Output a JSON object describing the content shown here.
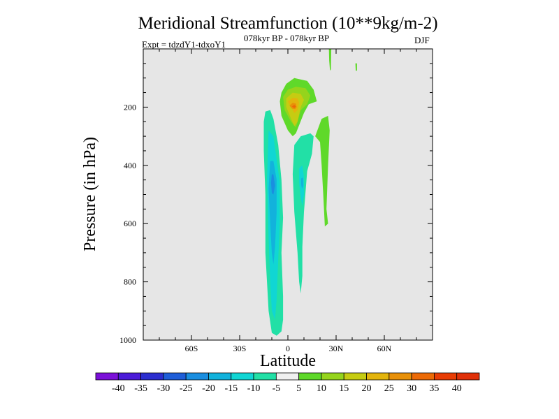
{
  "chart_data": {
    "type": "contour",
    "title": "Meridional Streamfunction (10**9kg/m-2)",
    "experiment_label": "Expt = tdzdY1-tdxoY1",
    "period_label": "078kyr BP - 078kyr BP",
    "season_label": "DJF",
    "xlabel": "Latitude",
    "ylabel": "Pressure (in hPa)",
    "xlim": [
      -90,
      90
    ],
    "ylim": [
      1000,
      0
    ],
    "x_ticks": [
      {
        "value": -60,
        "label": "60S"
      },
      {
        "value": -30,
        "label": "30S"
      },
      {
        "value": 0,
        "label": "0"
      },
      {
        "value": 30,
        "label": "30N"
      },
      {
        "value": 60,
        "label": "60N"
      }
    ],
    "y_ticks": [
      {
        "value": 200,
        "label": "200"
      },
      {
        "value": 400,
        "label": "400"
      },
      {
        "value": 600,
        "label": "600"
      },
      {
        "value": 800,
        "label": "800"
      },
      {
        "value": 1000,
        "label": "1000"
      }
    ],
    "background_color": "#e6e6e6",
    "colorbar": {
      "labels": [
        "-40",
        "-35",
        "-30",
        "-25",
        "-20",
        "-15",
        "-10",
        "-5",
        "5",
        "10",
        "15",
        "20",
        "25",
        "30",
        "35",
        "40"
      ],
      "colors": [
        "#7b10d8",
        "#4b1bd8",
        "#2c2ecf",
        "#1f5ed8",
        "#1a8ee0",
        "#12b2dc",
        "#10d6d4",
        "#22e0a6",
        "#f0f0f0",
        "#5fd92a",
        "#95d41c",
        "#c6cc12",
        "#e3b40c",
        "#e89008",
        "#ec6a06",
        "#e83c04"
      ]
    },
    "contours": [
      {
        "name": "-5 negative cell (south)",
        "level": -5,
        "color": "#22e0a6",
        "points": [
          [
            -14,
            215
          ],
          [
            -11,
            210
          ],
          [
            -9,
            240
          ],
          [
            -6,
            330
          ],
          [
            -4,
            450
          ],
          [
            -3,
            580
          ],
          [
            -4,
            700
          ],
          [
            -3,
            850
          ],
          [
            -3,
            930
          ],
          [
            -4,
            970
          ],
          [
            -7,
            985
          ],
          [
            -10,
            975
          ],
          [
            -12,
            900
          ],
          [
            -13,
            800
          ],
          [
            -14,
            700
          ],
          [
            -14,
            500
          ],
          [
            -15,
            350
          ],
          [
            -15,
            250
          ]
        ]
      },
      {
        "name": "-10 negative cell (south)",
        "level": -10,
        "color": "#10d6d4",
        "points": [
          [
            -12,
            280
          ],
          [
            -9,
            300
          ],
          [
            -7,
            380
          ],
          [
            -5,
            460
          ],
          [
            -5,
            600
          ],
          [
            -6,
            720
          ],
          [
            -7,
            860
          ],
          [
            -8,
            930
          ],
          [
            -10,
            900
          ],
          [
            -11,
            800
          ],
          [
            -12,
            650
          ],
          [
            -13,
            450
          ]
        ]
      },
      {
        "name": "-15 negative core (south)",
        "level": -15,
        "color": "#12b2dc",
        "points": [
          [
            -11,
            385
          ],
          [
            -9,
            385
          ],
          [
            -7,
            450
          ],
          [
            -7,
            560
          ],
          [
            -8,
            680
          ],
          [
            -9,
            740
          ],
          [
            -10,
            700
          ],
          [
            -11,
            600
          ],
          [
            -12,
            480
          ]
        ]
      },
      {
        "name": "-20 negative core (south)",
        "level": -20,
        "color": "#1a8ee0",
        "points": [
          [
            -10,
            430
          ],
          [
            -9,
            432
          ],
          [
            -8,
            470
          ],
          [
            -9,
            500
          ],
          [
            -10,
            495
          ],
          [
            -10.5,
            460
          ]
        ]
      },
      {
        "name": "-5 negative cell (north)",
        "level": -5,
        "color": "#22e0a6",
        "points": [
          [
            4,
            330
          ],
          [
            8,
            300
          ],
          [
            14,
            290
          ],
          [
            16,
            300
          ],
          [
            15,
            360
          ],
          [
            12,
            420
          ],
          [
            10,
            560
          ],
          [
            9,
            680
          ],
          [
            9,
            780
          ],
          [
            8,
            840
          ],
          [
            7,
            800
          ],
          [
            6,
            700
          ],
          [
            4,
            560
          ],
          [
            3,
            430
          ]
        ]
      },
      {
        "name": "-10 negative core (north)",
        "level": -10,
        "color": "#10d6d4",
        "points": [
          [
            7,
            410
          ],
          [
            9,
            400
          ],
          [
            10,
            440
          ],
          [
            10,
            500
          ],
          [
            9,
            540
          ],
          [
            8,
            510
          ],
          [
            7,
            460
          ]
        ]
      },
      {
        "name": "-15 negative core (north)",
        "level": -15,
        "color": "#12b2dc",
        "points": [
          [
            8.2,
            445
          ],
          [
            9.4,
            442
          ],
          [
            9.6,
            470
          ],
          [
            8.8,
            480
          ],
          [
            8.2,
            465
          ]
        ]
      },
      {
        "name": "+5 positive cell (upper)",
        "level": 5,
        "color": "#5fd92a",
        "points": [
          [
            -4,
            150
          ],
          [
            -1,
            120
          ],
          [
            4,
            100
          ],
          [
            12,
            110
          ],
          [
            16,
            140
          ],
          [
            18,
            180
          ],
          [
            13,
            190
          ],
          [
            10,
            220
          ],
          [
            5,
            290
          ],
          [
            3,
            300
          ],
          [
            0,
            280
          ],
          [
            -4,
            230
          ],
          [
            -5,
            180
          ]
        ]
      },
      {
        "name": "+5 positive cell (northern column)",
        "level": 5,
        "color": "#5fd92a",
        "points": [
          [
            17,
            300
          ],
          [
            21,
            240
          ],
          [
            25,
            230
          ],
          [
            26,
            280
          ],
          [
            25,
            400
          ],
          [
            24,
            550
          ],
          [
            25,
            600
          ],
          [
            23,
            610
          ],
          [
            22,
            500
          ],
          [
            21,
            400
          ],
          [
            20,
            320
          ]
        ]
      },
      {
        "name": "+5 small cell near 25N top",
        "level": 5,
        "color": "#5fd92a",
        "points": [
          [
            25.5,
            0
          ],
          [
            27,
            0
          ],
          [
            26.8,
            70
          ],
          [
            26.2,
            75
          ],
          [
            25.7,
            40
          ]
        ]
      },
      {
        "name": "+5 tiny cell near 42N",
        "level": 5,
        "color": "#5fd92a",
        "points": [
          [
            42,
            50
          ],
          [
            43,
            50
          ],
          [
            43,
            75
          ],
          [
            42.2,
            75
          ]
        ]
      },
      {
        "name": "+10 positive cell",
        "level": 10,
        "color": "#95d41c",
        "points": [
          [
            -3,
            165
          ],
          [
            0,
            140
          ],
          [
            5,
            130
          ],
          [
            11,
            135
          ],
          [
            14,
            160
          ],
          [
            12,
            190
          ],
          [
            8,
            210
          ],
          [
            5,
            270
          ],
          [
            2,
            250
          ],
          [
            -2,
            210
          ]
        ]
      },
      {
        "name": "+15 positive cell",
        "level": 15,
        "color": "#c6cc12",
        "points": [
          [
            -1,
            170
          ],
          [
            3,
            150
          ],
          [
            8,
            155
          ],
          [
            10,
            175
          ],
          [
            8,
            200
          ],
          [
            6,
            250
          ],
          [
            4,
            265
          ],
          [
            2,
            240
          ],
          [
            -1,
            200
          ]
        ]
      },
      {
        "name": "+20 positive core",
        "level": 20,
        "color": "#e3b40c",
        "points": [
          [
            0,
            180
          ],
          [
            3,
            168
          ],
          [
            6,
            170
          ],
          [
            7,
            185
          ],
          [
            6,
            210
          ],
          [
            4,
            220
          ],
          [
            2,
            200
          ]
        ]
      },
      {
        "name": "+25 positive core",
        "level": 25,
        "color": "#e89008",
        "points": [
          [
            1,
            195
          ],
          [
            3,
            185
          ],
          [
            5,
            188
          ],
          [
            5.5,
            200
          ],
          [
            4.5,
            207
          ],
          [
            2.5,
            205
          ]
        ]
      },
      {
        "name": "+30 positive core",
        "level": 30,
        "color": "#ec6a06",
        "points": [
          [
            2.5,
            198
          ],
          [
            4,
            192
          ],
          [
            5,
            198
          ],
          [
            4,
            203
          ]
        ]
      }
    ]
  }
}
